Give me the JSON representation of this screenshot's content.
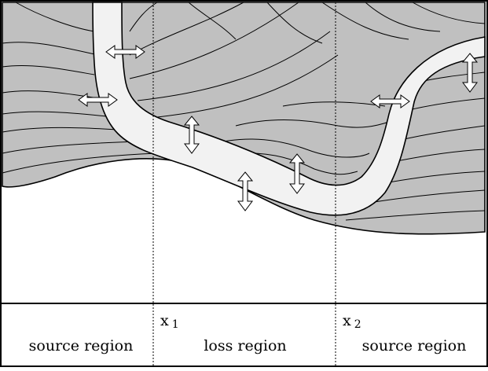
{
  "diagram": {
    "markers": [
      {
        "id": "x1",
        "base": "x",
        "subscript": "1"
      },
      {
        "id": "x2",
        "base": "x",
        "subscript": "2"
      }
    ],
    "regions": [
      {
        "id": "left",
        "label": "source region"
      },
      {
        "id": "middle",
        "label": "loss region"
      },
      {
        "id": "right",
        "label": "source region"
      }
    ],
    "colors": {
      "stratum_fill": "#c0c0c0",
      "channel_fill": "#f2f2f2",
      "line": "#000000",
      "background": "#ffffff"
    },
    "icons": {
      "flow_arrow": "double-headed-arrow-icon"
    }
  }
}
